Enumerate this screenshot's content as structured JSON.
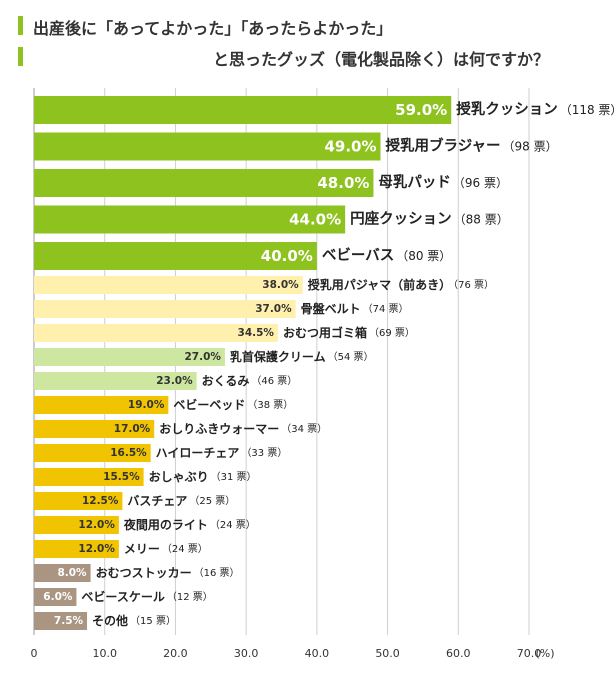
{
  "title": {
    "line1": "出産後に「あってよかった」「あったらよかった」",
    "line2": "と思ったグッズ（電化製品除く）は何ですか？"
  },
  "colors": {
    "accent": "#8dc21f",
    "tier1": "#8dc21f",
    "tier2": "#fff1ad",
    "tier3": "#cde6a0",
    "tier4": "#f0c400",
    "tier5": "#a99582",
    "grid": "#cfcfcf"
  },
  "chart_data": {
    "type": "bar",
    "orientation": "horizontal",
    "title": "出産後に「あってよかった」「あったらよかった」と思ったグッズ（電化製品除く）は何ですか？",
    "unit": "(%)",
    "xlim": [
      0,
      70
    ],
    "xticks": [
      "0",
      "10.0",
      "20.0",
      "30.0",
      "40.0",
      "50.0",
      "60.0",
      "70.0"
    ],
    "grid": true,
    "categories": [
      "授乳クッション",
      "授乳用ブラジャー",
      "母乳パッド",
      "円座クッション",
      "ベビーバス",
      "授乳用パジャマ（前あき）",
      "骨盤ベルト",
      "おむつ用ゴミ箱",
      "乳首保護クリーム",
      "おくるみ",
      "ベビーベッド",
      "おしりふきウォーマー",
      "ハイローチェア",
      "おしゃぶり",
      "バスチェア",
      "夜間用のライト",
      "メリー",
      "おむつストッカー",
      "ベビースケール",
      "その他"
    ],
    "values": [
      59.0,
      49.0,
      48.0,
      44.0,
      40.0,
      38.0,
      37.0,
      34.5,
      27.0,
      23.0,
      19.0,
      17.0,
      16.5,
      15.5,
      12.5,
      12.0,
      12.0,
      8.0,
      6.0,
      7.5
    ],
    "value_labels": [
      "59.0%",
      "49.0%",
      "48.0%",
      "44.0%",
      "40.0%",
      "38.0%",
      "37.0%",
      "34.5%",
      "27.0%",
      "23.0%",
      "19.0%",
      "17.0%",
      "16.5%",
      "15.5%",
      "12.5%",
      "12.0%",
      "12.0%",
      "8.0%",
      "6.0%",
      "7.5%"
    ],
    "counts": [
      "（118 票）",
      "（98 票）",
      "（96 票）",
      "（88 票）",
      "（80 票）",
      "（76 票）",
      "（74 票）",
      "（69 票）",
      "（54 票）",
      "（46 票）",
      "（38 票）",
      "（34 票）",
      "（33 票）",
      "（31 票）",
      "（25 票）",
      "（24 票）",
      "（24 票）",
      "（16 票）",
      "（12 票）",
      "（15 票）"
    ],
    "tiers": [
      1,
      1,
      1,
      1,
      1,
      2,
      2,
      2,
      3,
      3,
      4,
      4,
      4,
      4,
      4,
      4,
      4,
      5,
      5,
      5
    ]
  }
}
